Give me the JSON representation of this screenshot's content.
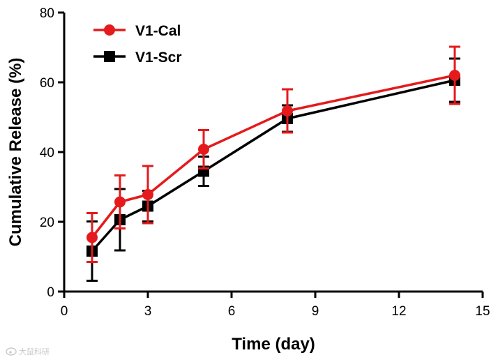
{
  "chart_data": {
    "type": "line",
    "title": "",
    "xlabel": "Time (day)",
    "ylabel": "Cumulative Release (%)",
    "xlim": [
      0,
      15
    ],
    "ylim": [
      0,
      80
    ],
    "xticks": [
      0,
      3,
      6,
      9,
      12,
      15
    ],
    "yticks": [
      0,
      20,
      40,
      60,
      80
    ],
    "grid": false,
    "legend_position": "top-left",
    "series": [
      {
        "name": "V1-Cal",
        "color": "#e41a1c",
        "marker": "circle",
        "x": [
          1,
          2,
          3,
          5,
          8,
          14
        ],
        "y": [
          15.5,
          25.7,
          27.8,
          40.8,
          51.8,
          62.0
        ],
        "err": [
          7.0,
          7.6,
          8.2,
          5.5,
          6.2,
          8.2
        ]
      },
      {
        "name": "V1-Scr",
        "color": "#000000",
        "marker": "square",
        "x": [
          1,
          2,
          3,
          5,
          8,
          14
        ],
        "y": [
          11.6,
          20.6,
          24.5,
          34.5,
          49.6,
          60.6
        ],
        "err": [
          8.5,
          8.8,
          4.4,
          4.2,
          3.8,
          6.2
        ]
      }
    ]
  },
  "watermark": {
    "icon": "weibo-logo-icon",
    "text": "大鼠科研"
  }
}
